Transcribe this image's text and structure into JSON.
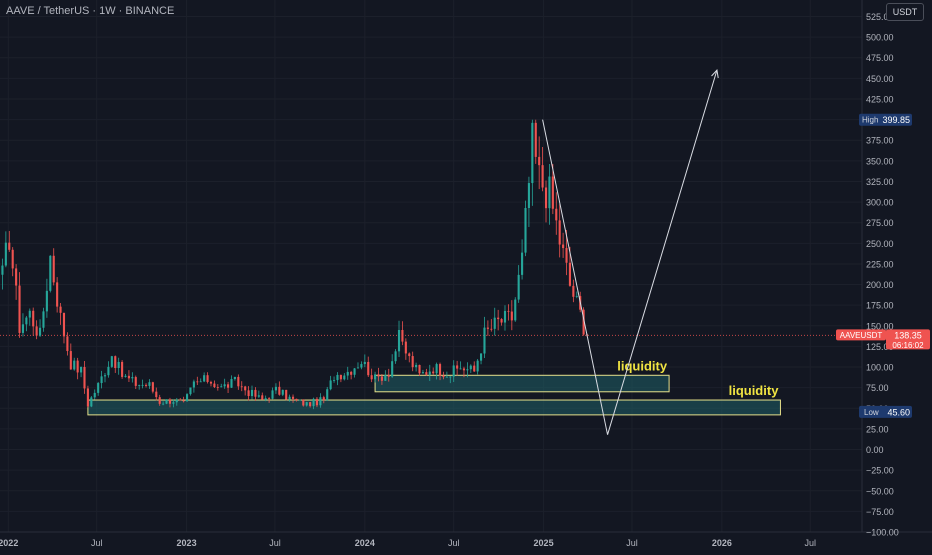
{
  "header": {
    "symbol_title": "AAVE / TetherUS · 1W · BINANCE",
    "currency_button": "USDT"
  },
  "badges": {
    "high_label": "High",
    "high_value": "399.85",
    "low_label": "Low",
    "low_value": "45.60",
    "symbol_label": "AAVEUSDT",
    "last_price": "138.35",
    "countdown": "06:16:02"
  },
  "colors": {
    "background": "#131722",
    "up": "#26a69a",
    "down": "#ef5350",
    "zone_fill": "#1f5f66",
    "zone_border": "#e6e08a",
    "annotation_text": "#f0e442",
    "projection_line": "#d9dce3",
    "high_low_badge": "#1e3a6e",
    "price_badge": "#ef5350"
  },
  "chart_data": {
    "type": "candlestick",
    "x_axis_ticks": [
      "2022",
      "Jul",
      "2023",
      "Jul",
      "2024",
      "Jul",
      "2025",
      "Jul",
      "2026",
      "Jul"
    ],
    "x_tick_dates": [
      "2022-01",
      "2022-07",
      "2023-01",
      "2023-07",
      "2024-01",
      "2024-07",
      "2025-01",
      "2025-07",
      "2026-01",
      "2026-07"
    ],
    "y_axis_ticks": [
      "525.00",
      "500.00",
      "475.00",
      "450.00",
      "425.00",
      "400.00",
      "375.00",
      "350.00",
      "325.00",
      "300.00",
      "275.00",
      "250.00",
      "225.00",
      "200.00",
      "175.00",
      "150.00",
      "125.00",
      "100.00",
      "75.00",
      "50.00",
      "25.00",
      "0.00",
      "−25.00",
      "−50.00",
      "−75.00",
      "−100.00"
    ],
    "y_tick_values": [
      525,
      500,
      475,
      450,
      425,
      400,
      375,
      350,
      325,
      300,
      275,
      250,
      225,
      200,
      175,
      150,
      125,
      100,
      75,
      50,
      25,
      0,
      -25,
      -50,
      -75,
      -100
    ],
    "ylim": [
      -100,
      545
    ],
    "xlim": [
      "2021-12-15",
      "2026-10-15"
    ],
    "series_anchors_close": [
      [
        "2021-12-20",
        210
      ],
      [
        "2022-01-03",
        260
      ],
      [
        "2022-01-24",
        150
      ],
      [
        "2022-02-14",
        165
      ],
      [
        "2022-03-07",
        138
      ],
      [
        "2022-03-28",
        235
      ],
      [
        "2022-04-18",
        160
      ],
      [
        "2022-05-09",
        105
      ],
      [
        "2022-05-30",
        95
      ],
      [
        "2022-06-13",
        55
      ],
      [
        "2022-07-04",
        78
      ],
      [
        "2022-08-01",
        115
      ],
      [
        "2022-08-22",
        90
      ],
      [
        "2022-09-19",
        80
      ],
      [
        "2022-10-17",
        78
      ],
      [
        "2022-11-07",
        58
      ],
      [
        "2022-12-05",
        60
      ],
      [
        "2022-12-26",
        55
      ],
      [
        "2023-01-16",
        80
      ],
      [
        "2023-02-13",
        85
      ],
      [
        "2023-03-13",
        75
      ],
      [
        "2023-04-10",
        82
      ],
      [
        "2023-05-08",
        70
      ],
      [
        "2023-06-05",
        60
      ],
      [
        "2023-07-03",
        72
      ],
      [
        "2023-08-07",
        60
      ],
      [
        "2023-09-04",
        55
      ],
      [
        "2023-10-09",
        60
      ],
      [
        "2023-10-30",
        90
      ],
      [
        "2023-11-27",
        95
      ],
      [
        "2023-12-25",
        108
      ],
      [
        "2024-01-22",
        85
      ],
      [
        "2024-02-19",
        95
      ],
      [
        "2024-03-11",
        135
      ],
      [
        "2024-04-01",
        110
      ],
      [
        "2024-04-22",
        90
      ],
      [
        "2024-05-20",
        100
      ],
      [
        "2024-06-24",
        92
      ],
      [
        "2024-07-15",
        100
      ],
      [
        "2024-08-12",
        95
      ],
      [
        "2024-09-02",
        140
      ],
      [
        "2024-09-30",
        155
      ],
      [
        "2024-10-28",
        160
      ],
      [
        "2024-11-18",
        230
      ],
      [
        "2024-12-09",
        370
      ],
      [
        "2024-12-23",
        330
      ],
      [
        "2025-01-13",
        310
      ],
      [
        "2025-02-03",
        255
      ],
      [
        "2025-02-24",
        200
      ],
      [
        "2025-03-17",
        165
      ],
      [
        "2025-03-31",
        138
      ]
    ],
    "high": 399.85,
    "low": 45.6,
    "last_price": 138.35
  },
  "annotations": {
    "zone1": {
      "label": "liquidity",
      "from": "2024-01-22",
      "to": "2025-09-15",
      "low": 70,
      "high": 90
    },
    "zone2": {
      "label": "liquidity",
      "from": "2022-06-13",
      "to": "2026-05-01",
      "low": 42,
      "high": 60
    },
    "projection": [
      [
        "2024-12-30",
        400
      ],
      [
        "2025-05-12",
        18
      ],
      [
        "2025-12-22",
        460
      ]
    ]
  }
}
